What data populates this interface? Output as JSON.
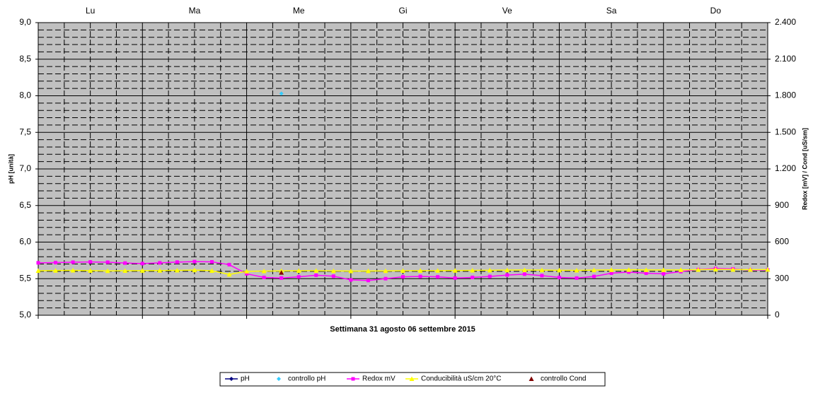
{
  "chart_data": {
    "type": "line",
    "categories": [
      "Lu",
      "Ma",
      "Me",
      "Gi",
      "Ve",
      "Sa",
      "Do"
    ],
    "x_label": "Settimana    31 agosto 06 settembre  2015",
    "y_label": "pH [unità]",
    "y2_label": "Redox [mV] / Cond [uS/sm]",
    "x": [
      0,
      4,
      8,
      12,
      16,
      20,
      24,
      28,
      32,
      36,
      40,
      44,
      48,
      52,
      56,
      60,
      64,
      68,
      72,
      76,
      80,
      84,
      88,
      92,
      96,
      100,
      104,
      108,
      112,
      116,
      120,
      124,
      128,
      132,
      136,
      140,
      144,
      148,
      152,
      156,
      160,
      164,
      168
    ],
    "xlim": [
      0,
      168
    ],
    "ylim": [
      5,
      9
    ],
    "yticks": [
      {
        "value": 5,
        "label": "5,0"
      },
      {
        "value": 5.5,
        "label": "5,5"
      },
      {
        "value": 6,
        "label": "6,0"
      },
      {
        "value": 6.5,
        "label": "6,5"
      },
      {
        "value": 7,
        "label": "7,0"
      },
      {
        "value": 7.5,
        "label": "7,5"
      },
      {
        "value": 8,
        "label": "8,0"
      },
      {
        "value": 8.5,
        "label": "8,5"
      },
      {
        "value": 9,
        "label": "9,0"
      }
    ],
    "y2lim": [
      0,
      2400
    ],
    "y2ticks": [
      0,
      300,
      600,
      900,
      {
        "value": 1200,
        "label": "1.200"
      },
      {
        "value": 1500,
        "label": "1.500"
      },
      {
        "value": 1800,
        "label": "1.800"
      },
      {
        "value": 2100,
        "label": "2.100"
      },
      {
        "value": 2400,
        "label": "2.400"
      }
    ],
    "grid": true,
    "background": "#c0c0c0",
    "series": [
      {
        "name": "pH",
        "color": "#000080",
        "marker": "diamond",
        "line": true,
        "values": [
          null,
          null,
          null,
          null,
          null,
          null,
          null,
          null,
          null,
          null,
          null,
          null,
          null,
          null,
          null,
          null,
          null,
          null,
          null,
          null,
          null,
          null,
          null,
          null,
          null,
          null,
          null,
          null,
          null,
          null,
          null,
          null,
          null,
          null,
          null,
          null,
          null,
          null,
          null,
          null,
          null,
          null,
          null
        ]
      },
      {
        "name": "controllo pH",
        "color": "#33ccff",
        "marker": "diamond",
        "line": false,
        "values": [
          null,
          null,
          null,
          null,
          null,
          null,
          null,
          null,
          null,
          null,
          null,
          null,
          null,
          null,
          8.03,
          null,
          null,
          null,
          null,
          null,
          null,
          null,
          null,
          null,
          null,
          null,
          null,
          null,
          null,
          null,
          null,
          null,
          null,
          null,
          null,
          null,
          null,
          null,
          null,
          null,
          null,
          null,
          null
        ]
      },
      {
        "name": "Redox mV",
        "color": "#ff00ff",
        "marker": "square",
        "line": true,
        "axis": "y2",
        "values": [
          430,
          432,
          435,
          437,
          435,
          428,
          424,
          430,
          436,
          440,
          438,
          415,
          340,
          310,
          305,
          315,
          328,
          320,
          290,
          285,
          300,
          315,
          318,
          315,
          305,
          310,
          318,
          330,
          337,
          325,
          310,
          305,
          318,
          345,
          354,
          345,
          340,
          358,
          375,
          383,
          380,
          370,
          372
        ]
      },
      {
        "name": "Conducibilità uS/cm 20°C",
        "color": "#ffff00",
        "marker": "triangle",
        "line": true,
        "axis": "y2",
        "values": [
          365,
          367,
          368,
          366,
          364,
          365,
          366,
          367,
          368,
          370,
          365,
          335,
          360,
          362,
          364,
          365,
          366,
          364,
          362,
          363,
          364,
          365,
          366,
          366,
          367,
          368,
          369,
          370,
          371,
          370,
          369,
          368,
          370,
          372,
          373,
          372,
          371,
          372,
          374,
          376,
          375,
          374,
          375
        ]
      },
      {
        "name": "controllo Cond",
        "color": "#800000",
        "marker": "triangle",
        "line": false,
        "axis": "y2",
        "values": [
          null,
          null,
          null,
          null,
          null,
          null,
          null,
          null,
          null,
          null,
          null,
          null,
          null,
          null,
          350,
          null,
          null,
          null,
          null,
          null,
          null,
          null,
          null,
          null,
          null,
          null,
          null,
          null,
          null,
          null,
          null,
          null,
          null,
          null,
          null,
          null,
          null,
          null,
          null,
          null,
          null,
          null,
          null
        ]
      }
    ]
  }
}
